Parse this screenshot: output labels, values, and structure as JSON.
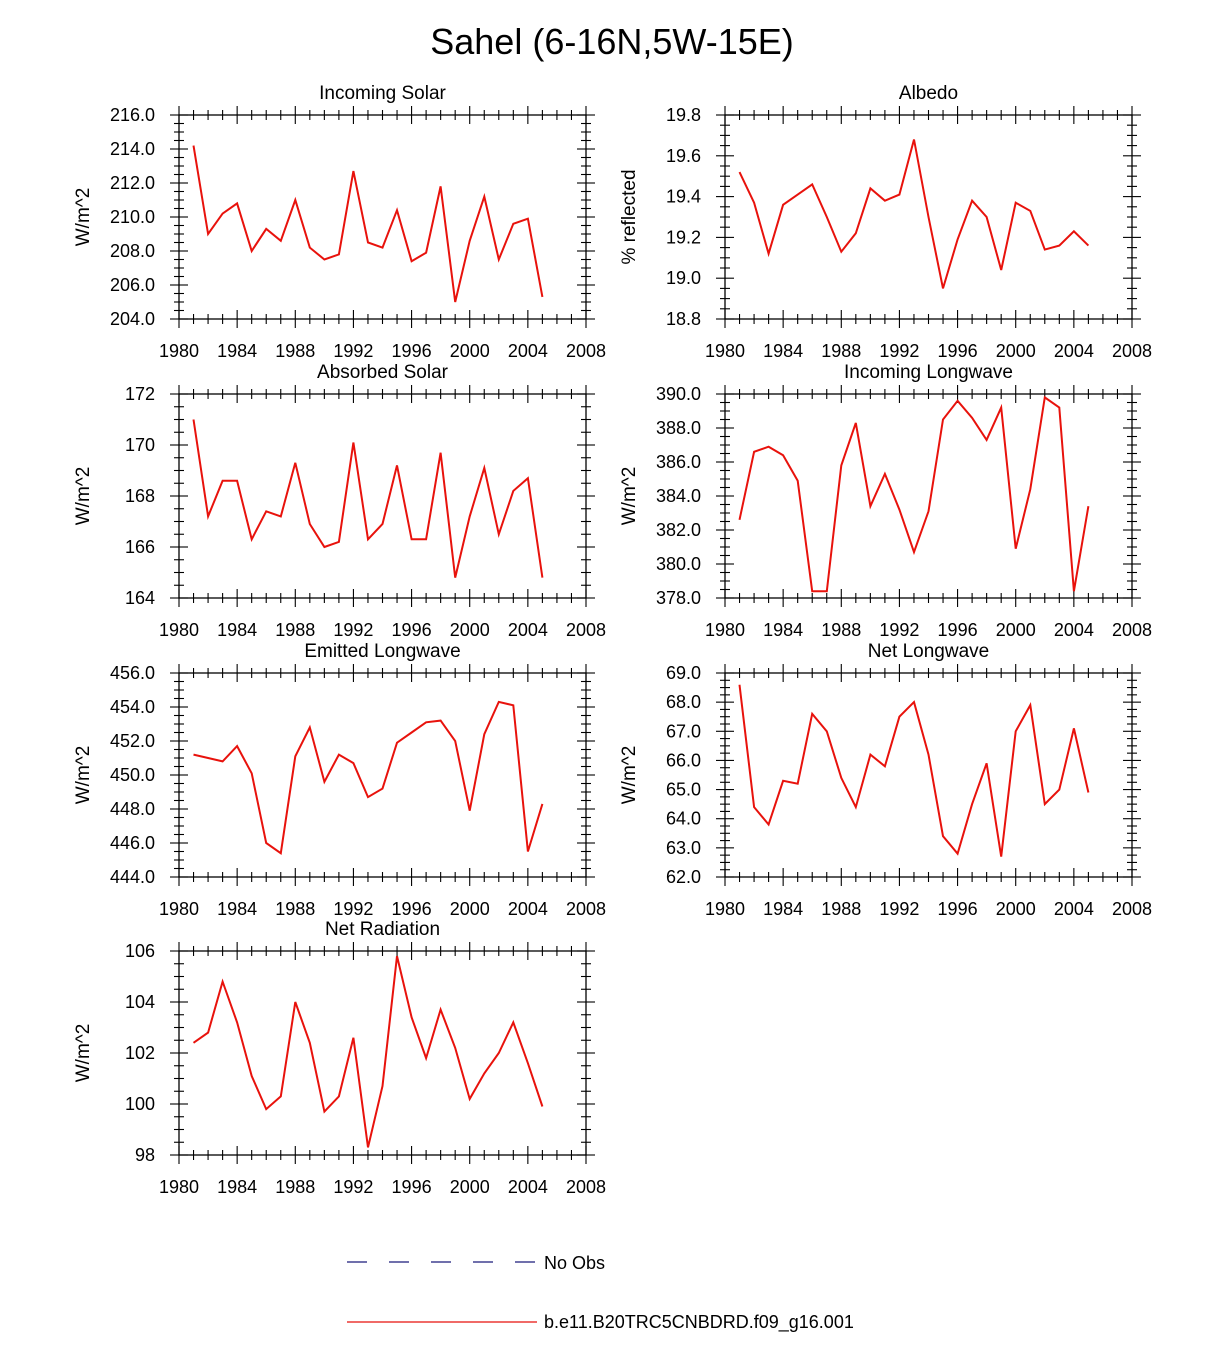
{
  "figure": {
    "title": "Sahel (6-16N,5W-15E)"
  },
  "legend": {
    "entries": [
      {
        "label": "No Obs",
        "style": "dashed",
        "color": "#1a1a7a"
      },
      {
        "label": "b.e11.B20TRC5CNBDRD.f09_g16.001",
        "style": "solid",
        "color": "#e8120c"
      }
    ]
  },
  "chart_data": [
    {
      "type": "line",
      "title": "Incoming Solar",
      "ylabel": "W/m^2",
      "xlim": [
        1980,
        2008
      ],
      "ylim": [
        204.0,
        216.0
      ],
      "xticks": [
        1980,
        1984,
        1988,
        1992,
        1996,
        2000,
        2004,
        2008
      ],
      "yticks": [
        204.0,
        206.0,
        208.0,
        210.0,
        212.0,
        214.0,
        216.0
      ],
      "ytick_decimals": 1,
      "x": [
        1981,
        1982,
        1983,
        1984,
        1985,
        1986,
        1987,
        1988,
        1989,
        1990,
        1991,
        1992,
        1993,
        1994,
        1995,
        1996,
        1997,
        1998,
        1999,
        2000,
        2001,
        2002,
        2003,
        2004,
        2005
      ],
      "series": [
        {
          "color": "#e8120c",
          "values": [
            214.2,
            209.0,
            210.2,
            210.8,
            208.0,
            209.3,
            208.6,
            211.0,
            208.2,
            207.5,
            207.8,
            212.7,
            208.5,
            208.2,
            210.4,
            207.4,
            207.9,
            211.8,
            205.0,
            208.6,
            211.2,
            207.5,
            209.6,
            209.9,
            205.3
          ]
        }
      ]
    },
    {
      "type": "line",
      "title": "Albedo",
      "ylabel": "% reflected",
      "xlim": [
        1980,
        2008
      ],
      "ylim": [
        18.8,
        19.8
      ],
      "xticks": [
        1980,
        1984,
        1988,
        1992,
        1996,
        2000,
        2004,
        2008
      ],
      "yticks": [
        18.8,
        19.0,
        19.2,
        19.4,
        19.6,
        19.8
      ],
      "ytick_decimals": 1,
      "x": [
        1981,
        1982,
        1983,
        1984,
        1985,
        1986,
        1987,
        1988,
        1989,
        1990,
        1991,
        1992,
        1993,
        1994,
        1995,
        1996,
        1997,
        1998,
        1999,
        2000,
        2001,
        2002,
        2003,
        2004,
        2005
      ],
      "series": [
        {
          "color": "#e8120c",
          "values": [
            19.52,
            19.37,
            19.12,
            19.36,
            19.41,
            19.46,
            19.3,
            19.13,
            19.22,
            19.44,
            19.38,
            19.41,
            19.68,
            19.3,
            18.95,
            19.19,
            19.38,
            19.3,
            19.04,
            19.37,
            19.33,
            19.14,
            19.16,
            19.23,
            19.16
          ]
        }
      ]
    },
    {
      "type": "line",
      "title": "Absorbed Solar",
      "ylabel": "W/m^2",
      "xlim": [
        1980,
        2008
      ],
      "ylim": [
        164,
        172
      ],
      "xticks": [
        1980,
        1984,
        1988,
        1992,
        1996,
        2000,
        2004,
        2008
      ],
      "yticks": [
        164,
        166,
        168,
        170,
        172
      ],
      "ytick_decimals": 0,
      "x": [
        1981,
        1982,
        1983,
        1984,
        1985,
        1986,
        1987,
        1988,
        1989,
        1990,
        1991,
        1992,
        1993,
        1994,
        1995,
        1996,
        1997,
        1998,
        1999,
        2000,
        2001,
        2002,
        2003,
        2004,
        2005
      ],
      "series": [
        {
          "color": "#e8120c",
          "values": [
            171.0,
            167.2,
            168.6,
            168.6,
            166.3,
            167.4,
            167.2,
            169.3,
            166.9,
            166.0,
            166.2,
            170.1,
            166.3,
            166.9,
            169.2,
            166.3,
            166.3,
            169.7,
            164.8,
            167.2,
            169.1,
            166.5,
            168.2,
            168.7,
            164.8
          ]
        }
      ]
    },
    {
      "type": "line",
      "title": "Incoming Longwave",
      "ylabel": "W/m^2",
      "xlim": [
        1980,
        2008
      ],
      "ylim": [
        378.0,
        390.0
      ],
      "xticks": [
        1980,
        1984,
        1988,
        1992,
        1996,
        2000,
        2004,
        2008
      ],
      "yticks": [
        378.0,
        380.0,
        382.0,
        384.0,
        386.0,
        388.0,
        390.0
      ],
      "ytick_decimals": 1,
      "x": [
        1981,
        1982,
        1983,
        1984,
        1985,
        1986,
        1987,
        1988,
        1989,
        1990,
        1991,
        1992,
        1993,
        1994,
        1995,
        1996,
        1997,
        1998,
        1999,
        2000,
        2001,
        2002,
        2003,
        2004,
        2005
      ],
      "series": [
        {
          "color": "#e8120c",
          "values": [
            382.6,
            386.6,
            386.9,
            386.4,
            384.9,
            378.4,
            378.4,
            385.8,
            388.3,
            383.4,
            385.3,
            383.2,
            380.7,
            383.1,
            388.5,
            389.6,
            388.6,
            387.3,
            389.2,
            380.9,
            384.4,
            389.8,
            389.2,
            378.4,
            383.4
          ]
        }
      ]
    },
    {
      "type": "line",
      "title": "Emitted Longwave",
      "ylabel": "W/m^2",
      "xlim": [
        1980,
        2008
      ],
      "ylim": [
        444.0,
        456.0
      ],
      "xticks": [
        1980,
        1984,
        1988,
        1992,
        1996,
        2000,
        2004,
        2008
      ],
      "yticks": [
        444.0,
        446.0,
        448.0,
        450.0,
        452.0,
        454.0,
        456.0
      ],
      "ytick_decimals": 1,
      "x": [
        1981,
        1982,
        1983,
        1984,
        1985,
        1986,
        1987,
        1988,
        1989,
        1990,
        1991,
        1992,
        1993,
        1994,
        1995,
        1996,
        1997,
        1998,
        1999,
        2000,
        2001,
        2002,
        2003,
        2004,
        2005
      ],
      "series": [
        {
          "color": "#e8120c",
          "values": [
            451.2,
            451.0,
            450.8,
            451.7,
            450.1,
            446.0,
            445.4,
            451.1,
            452.8,
            449.6,
            451.2,
            450.7,
            448.7,
            449.2,
            451.9,
            452.5,
            453.1,
            453.2,
            452.0,
            447.9,
            452.4,
            454.3,
            454.1,
            445.5,
            448.3
          ]
        }
      ]
    },
    {
      "type": "line",
      "title": "Net Longwave",
      "ylabel": "W/m^2",
      "xlim": [
        1980,
        2008
      ],
      "ylim": [
        62.0,
        69.0
      ],
      "xticks": [
        1980,
        1984,
        1988,
        1992,
        1996,
        2000,
        2004,
        2008
      ],
      "yticks": [
        62.0,
        63.0,
        64.0,
        65.0,
        66.0,
        67.0,
        68.0,
        69.0
      ],
      "ytick_decimals": 1,
      "x": [
        1981,
        1982,
        1983,
        1984,
        1985,
        1986,
        1987,
        1988,
        1989,
        1990,
        1991,
        1992,
        1993,
        1994,
        1995,
        1996,
        1997,
        1998,
        1999,
        2000,
        2001,
        2002,
        2003,
        2004,
        2005
      ],
      "series": [
        {
          "color": "#e8120c",
          "values": [
            68.6,
            64.4,
            63.8,
            65.3,
            65.2,
            67.6,
            67.0,
            65.4,
            64.4,
            66.2,
            65.8,
            67.5,
            68.0,
            66.2,
            63.4,
            62.8,
            64.5,
            65.9,
            62.7,
            67.0,
            67.9,
            64.5,
            65.0,
            67.1,
            64.9
          ]
        }
      ]
    },
    {
      "type": "line",
      "title": "Net Radiation",
      "ylabel": "W/m^2",
      "xlim": [
        1980,
        2008
      ],
      "ylim": [
        98,
        106
      ],
      "xticks": [
        1980,
        1984,
        1988,
        1992,
        1996,
        2000,
        2004,
        2008
      ],
      "yticks": [
        98,
        100,
        102,
        104,
        106
      ],
      "ytick_decimals": 0,
      "x": [
        1981,
        1982,
        1983,
        1984,
        1985,
        1986,
        1987,
        1988,
        1989,
        1990,
        1991,
        1992,
        1993,
        1994,
        1995,
        1996,
        1997,
        1998,
        1999,
        2000,
        2001,
        2002,
        2003,
        2004,
        2005
      ],
      "series": [
        {
          "color": "#e8120c",
          "values": [
            102.4,
            102.8,
            104.8,
            103.2,
            101.1,
            99.8,
            100.3,
            104.0,
            102.4,
            99.7,
            100.3,
            102.6,
            98.3,
            100.7,
            105.8,
            103.4,
            101.8,
            103.7,
            102.2,
            100.2,
            101.2,
            102.0,
            103.2,
            101.6,
            99.9
          ]
        }
      ]
    }
  ]
}
